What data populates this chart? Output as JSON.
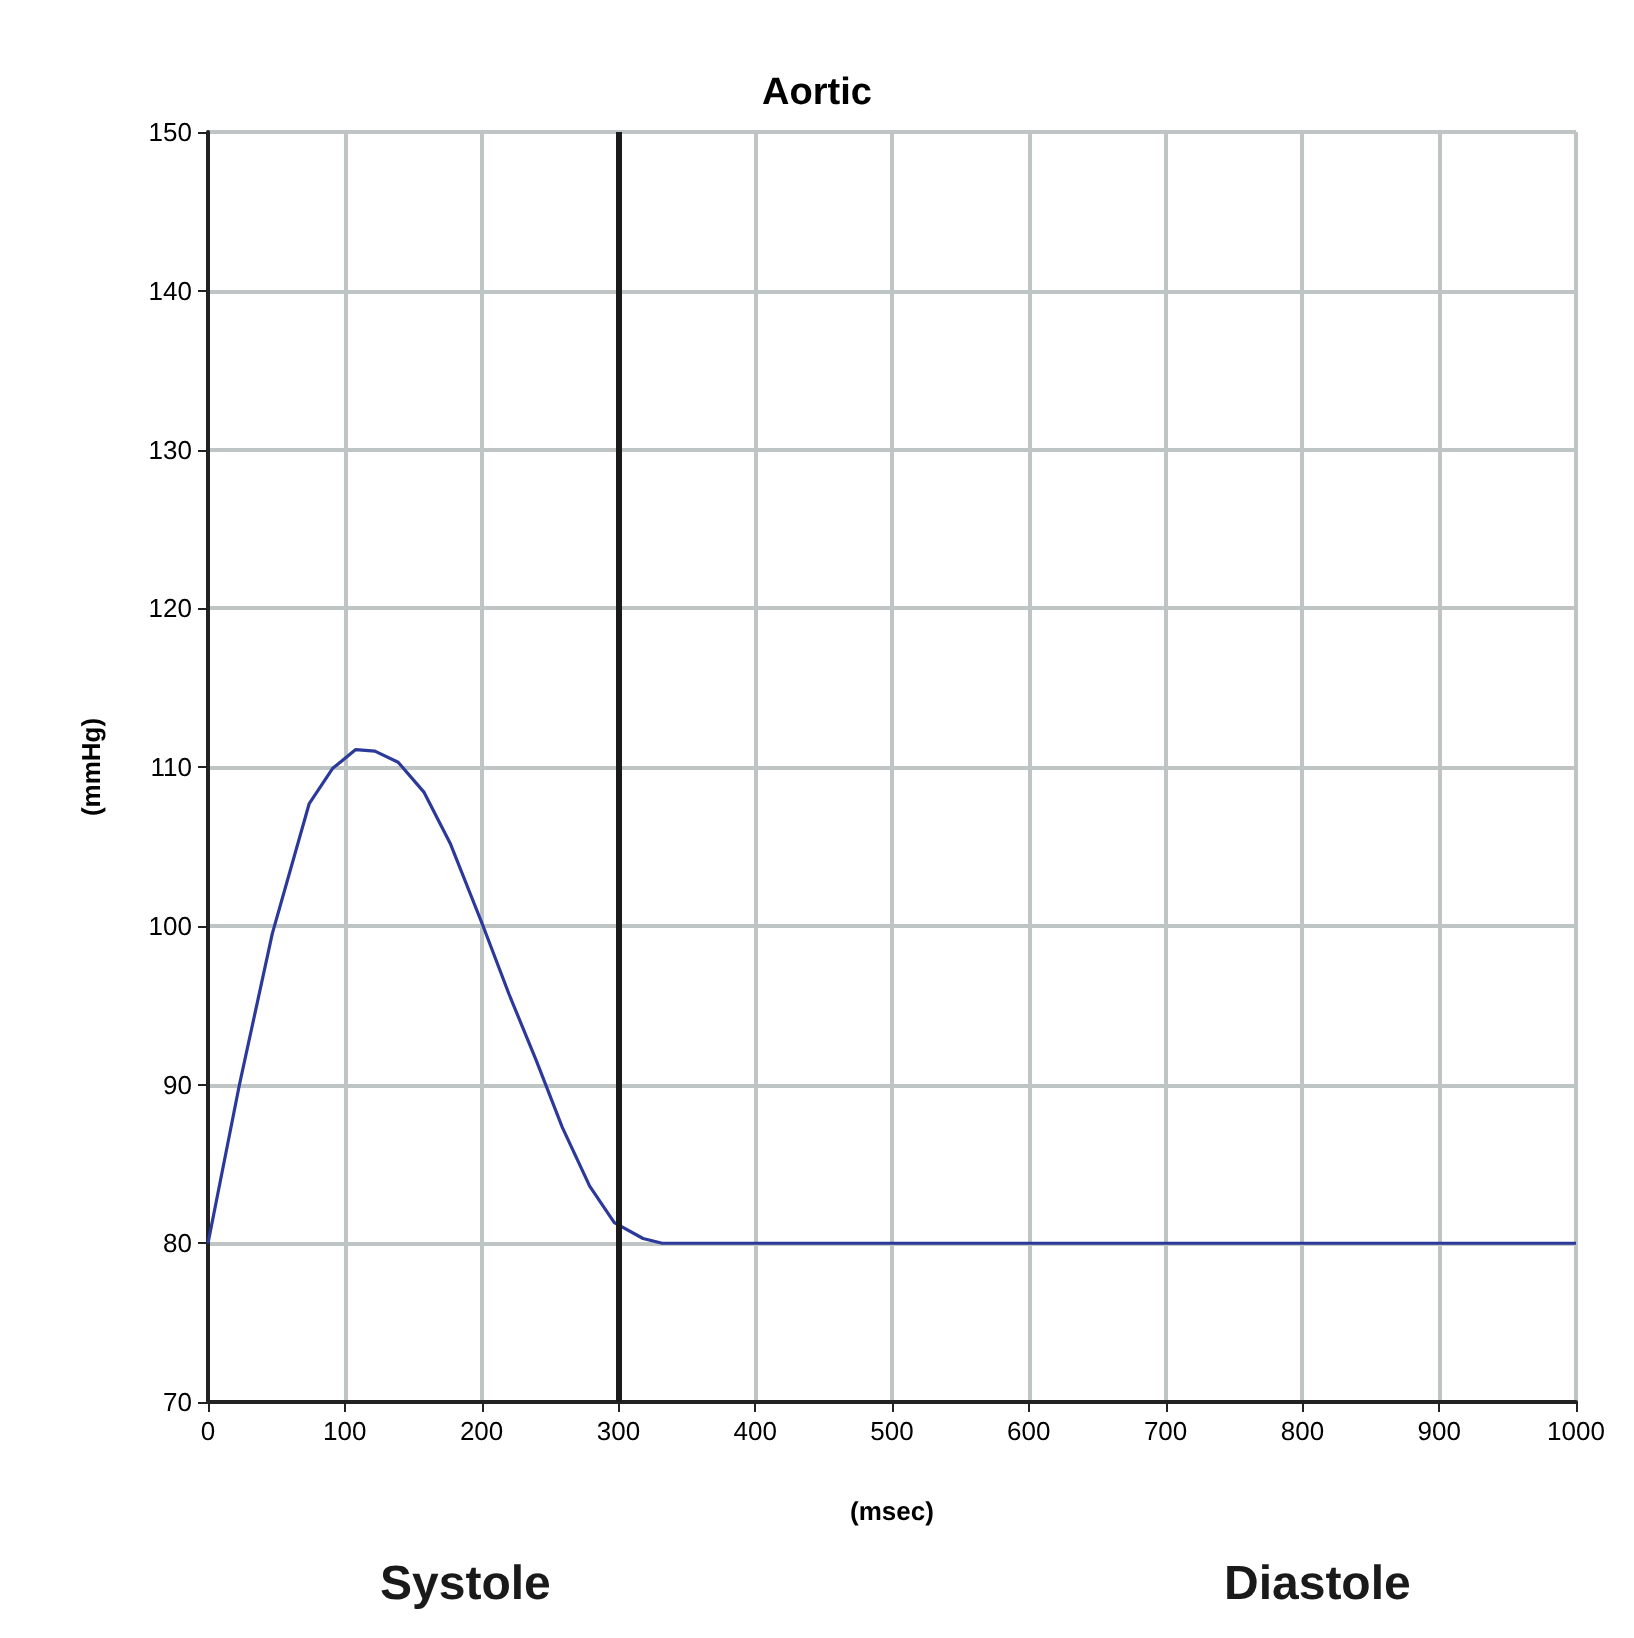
{
  "chart_data": {
    "type": "line",
    "title": "Aortic",
    "xlabel": "(msec)",
    "ylabel": "(mmHg)",
    "annotations": [
      "Systole",
      "Diastole"
    ],
    "series": [
      {
        "color": "#2b3a9a",
        "x": [
          0,
          23,
          47,
          74,
          91,
          108,
          122,
          139,
          158,
          177,
          201,
          220,
          240,
          259,
          279,
          297,
          318,
          332,
          1000
        ],
        "values": [
          80,
          90,
          99.5,
          107.7,
          109.9,
          111.1,
          111,
          110.3,
          108.4,
          105.2,
          100,
          95.7,
          91.5,
          87.3,
          83.6,
          81.3,
          80.3,
          80,
          80
        ]
      }
    ],
    "xlim": [
      0,
      1000
    ],
    "xticks": [
      0,
      100,
      200,
      300,
      400,
      500,
      600,
      700,
      800,
      900,
      1000
    ],
    "ylim": [
      70,
      150
    ],
    "yticks": [
      70,
      80,
      90,
      100,
      110,
      120,
      130,
      140,
      150
    ],
    "ref_lines": [
      {
        "axis": "x",
        "value": 300,
        "color": "#1a1a1a"
      }
    ],
    "grid": true,
    "marker": "none",
    "line_style": "solid"
  }
}
